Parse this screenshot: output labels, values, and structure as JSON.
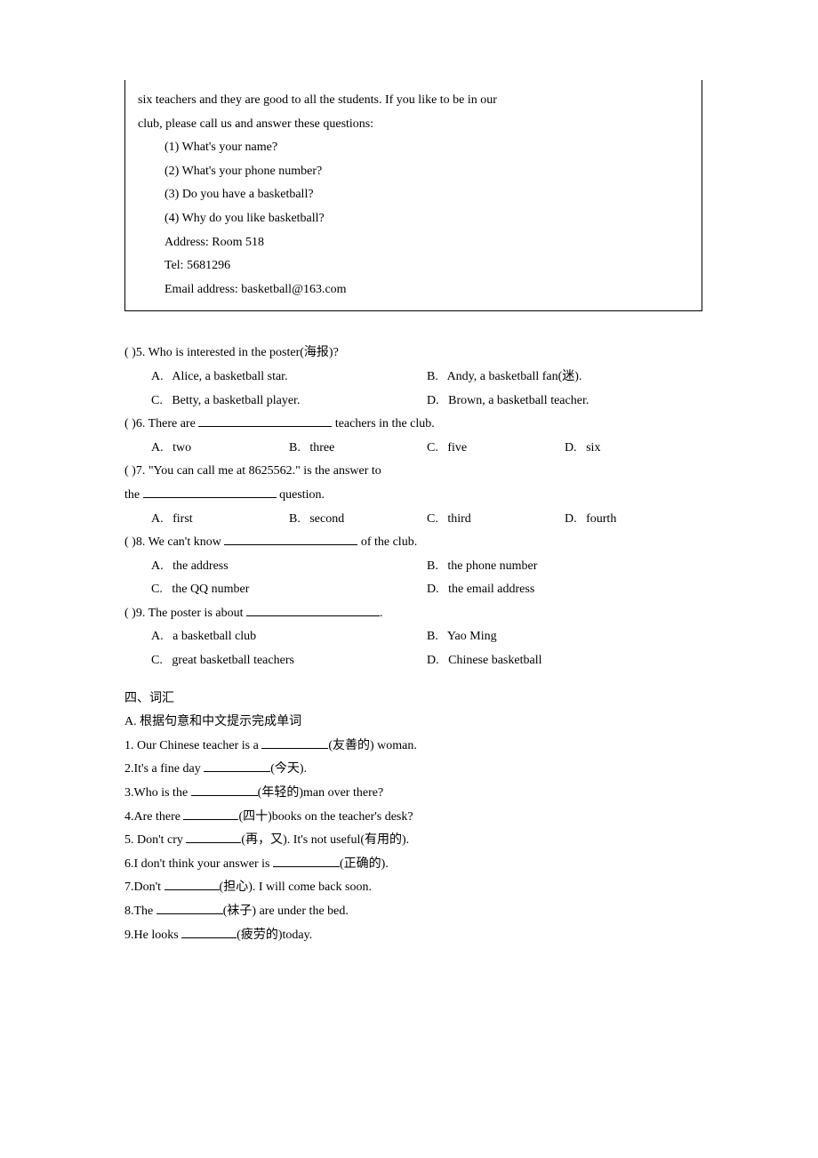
{
  "box": {
    "line1": "six teachers and they are good to all the students. If you like to be in our",
    "line2": "club, please call us and answer these questions:",
    "q1": "(1) What's your name?",
    "q2": "(2) What's your phone number?",
    "q3": "(3) Do you have a basketball?",
    "q4": "(4) Why do you like basketball?",
    "addr": "Address: Room 518",
    "tel": "Tel: 5681296",
    "email": "Email address: basketball@163.com"
  },
  "q5": {
    "stem": "(   )5. Who is interested in the poster(海报)?",
    "a": "A.   Alice, a basketball star.",
    "b": "B.   Andy, a basketball fan(迷).",
    "c": "C.   Betty, a basketball player.",
    "d": "D.   Brown, a basketball teacher."
  },
  "q6": {
    "stem_pre": "(   )6. There are ",
    "stem_post": " teachers in the club.",
    "a": "A.   two",
    "b": "B.   three",
    "c": "C.   five",
    "d": "D.   six"
  },
  "q7": {
    "stem1": "(   )7. \"You can call me at 8625562.\" is the answer to",
    "stem2_pre": "the ",
    "stem2_post": " question.",
    "a": "A.   first",
    "b": "B.   second",
    "c": "C.   third",
    "d": "D.   fourth"
  },
  "q8": {
    "stem_pre": "(   )8. We can't know ",
    "stem_post": " of the club.",
    "a": "A.   the address",
    "b": "B.   the phone number",
    "c": "C.   the QQ number",
    "d": "D.   the email address"
  },
  "q9": {
    "stem_pre": "(   )9. The poster is about ",
    "stem_post": ".",
    "a": "A.   a basketball club",
    "b": "B.   Yao Ming",
    "c": "C.   great basketball teachers",
    "d": "D.   Chinese basketball"
  },
  "section4": {
    "title": "四、词汇",
    "subA": "A. 根据句意和中文提示完成单词",
    "v1_pre": "1. Our Chinese teacher is a ",
    "v1_post": "(友善的) woman.",
    "v2_pre": "2.It's a fine day ",
    "v2_post": "(今天).",
    "v3_pre": "3.Who is the ",
    "v3_post": "(年轻的)man over there?",
    "v4_pre": "4.Are there ",
    "v4_post": "(四十)books on the teacher's desk?",
    "v5_pre": "5. Don't cry ",
    "v5_post": "(再，又). It's not useful(有用的).",
    "v6_pre": "6.I don't think your answer is ",
    "v6_post": "(正确的).",
    "v7_pre": "7.Don't ",
    "v7_post": "(担心). I will come back soon.",
    "v8_pre": "8.The ",
    "v8_post": "(袜子) are under the bed.",
    "v9_pre": "9.He looks ",
    "v9_post": "(疲劳的)today."
  }
}
